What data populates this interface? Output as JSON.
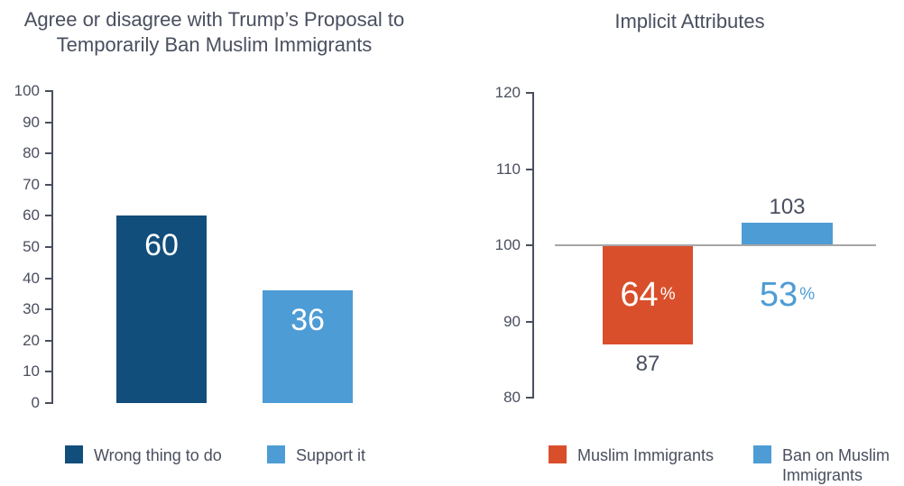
{
  "page": {
    "background": "#ffffff",
    "text_color": "#4a4f5f",
    "axis_color": "#4a4f5f",
    "baseline_color": "#a6a6a6"
  },
  "chart_data": [
    {
      "type": "bar",
      "title": "Agree or disagree with Trump’s Proposal to Temporarily Ban Muslim Immigrants",
      "title_lines": [
        "Agree or disagree with Trump’s Proposal to",
        "Temporarily Ban Muslim Immigrants"
      ],
      "categories": [
        "Wrong thing to do",
        "Support it"
      ],
      "values": [
        60,
        36
      ],
      "bar_labels": [
        "60",
        "36"
      ],
      "bar_label_color": "#ffffff",
      "bar_colors": [
        "#114e7c",
        "#4d9cd5"
      ],
      "xlabel": "",
      "ylabel": "",
      "ylim": [
        0,
        100
      ],
      "yticks": [
        0,
        10,
        20,
        30,
        40,
        50,
        60,
        70,
        80,
        90,
        100
      ],
      "grid": false,
      "legend_position": "bottom",
      "legend": [
        {
          "label": "Wrong thing to do",
          "color": "#114e7c"
        },
        {
          "label": "Support it",
          "color": "#4d9cd5"
        }
      ]
    },
    {
      "type": "bar",
      "title": "Implicit Attributes",
      "categories": [
        "Muslim Immigrants",
        "Ban on Muslim Immigrants"
      ],
      "values": [
        87,
        103
      ],
      "baseline": 100,
      "value_labels": [
        "87",
        "103"
      ],
      "percent_labels": [
        {
          "value": "64",
          "suffix": "%",
          "color": "#ffffff",
          "position": "inside-bar"
        },
        {
          "value": "53",
          "suffix": "%",
          "color": "#4d9cd5",
          "position": "floating-below-baseline"
        }
      ],
      "bar_colors": [
        "#d94f2b",
        "#4d9cd5"
      ],
      "xlabel": "",
      "ylabel": "",
      "ylim": [
        80,
        120
      ],
      "yticks": [
        80,
        90,
        100,
        110,
        120
      ],
      "grid": false,
      "baseline_color": "#a6a6a6",
      "legend_position": "bottom",
      "legend": [
        {
          "label": "Muslim Immigrants",
          "color": "#d94f2b"
        },
        {
          "label": "Ban on Muslim Immigrants",
          "color": "#4d9cd5"
        }
      ]
    }
  ]
}
